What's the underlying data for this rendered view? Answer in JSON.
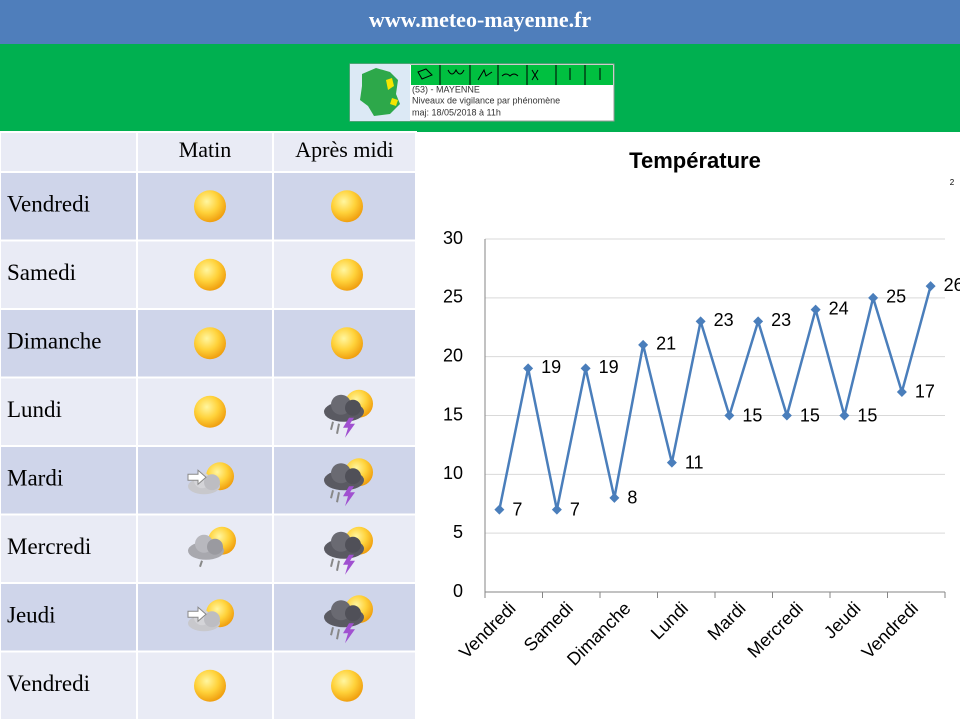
{
  "header": {
    "site": "www.meteo-mayenne.fr"
  },
  "vigilance": {
    "lines": [
      "(53) - MAYENNE",
      "Niveaux de vigilance par phénomène",
      "maj: 18/05/2018 à 11h"
    ]
  },
  "table": {
    "columns": [
      "Matin",
      "Après midi"
    ],
    "rows": [
      "Vendredi",
      "Samedi",
      "Dimanche",
      "Lundi",
      "Mardi",
      "Mercredi",
      "Jeudi",
      "Vendredi"
    ]
  },
  "chart_data": {
    "type": "line",
    "title": "Température",
    "annotation": "2",
    "categories": [
      "Vendredi",
      null,
      "Samedi",
      null,
      "Dimanche",
      null,
      "Lundi",
      null,
      "Mardi",
      null,
      "Mercredi",
      null,
      "Jeudi",
      null,
      "Vendredi",
      null
    ],
    "values": [
      7,
      19,
      7,
      19,
      8,
      21,
      11,
      23,
      15,
      23,
      15,
      24,
      15,
      25,
      17,
      26
    ],
    "color": "#4a7ebb",
    "ylim": [
      0,
      30
    ],
    "yticks": [
      0,
      5,
      10,
      15,
      20,
      25,
      30
    ],
    "grid": true
  }
}
